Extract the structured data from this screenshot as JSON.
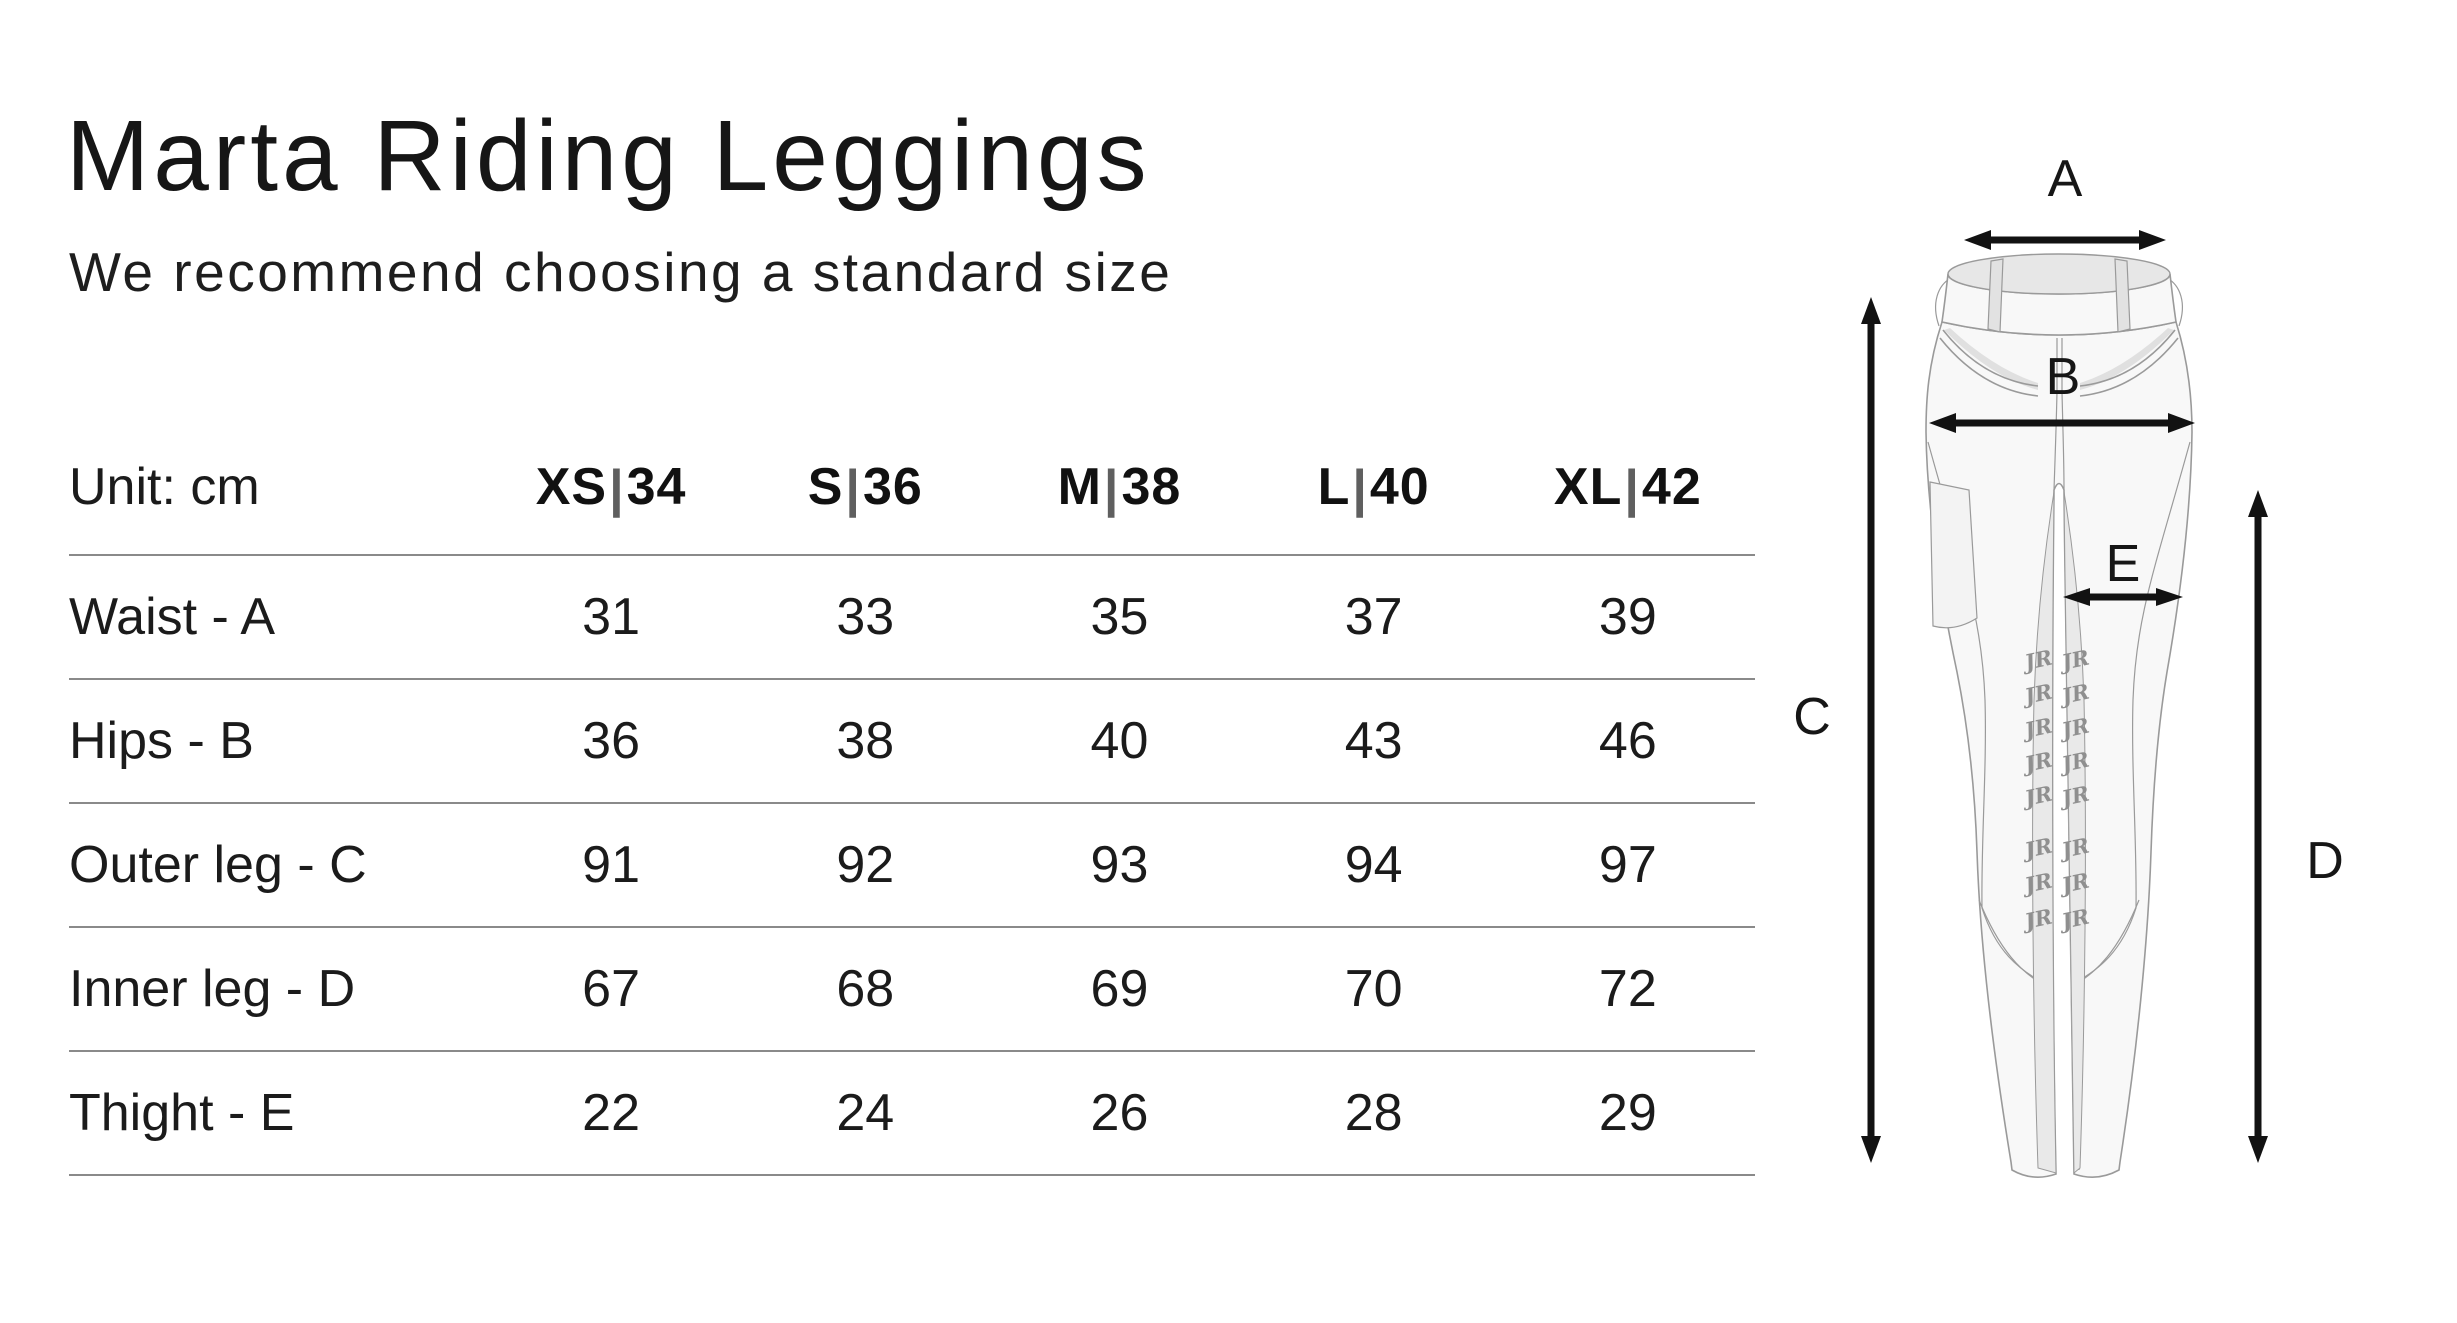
{
  "page": {
    "title": "Marta Riding Leggings",
    "subtitle": "We recommend choosing a standard size",
    "background": "#ffffff"
  },
  "chart_data": {
    "type": "table",
    "title": "Marta Riding Leggings size chart",
    "unit_label": "Unit: cm",
    "size_separator": "|",
    "columns": [
      {
        "size": "XS",
        "eu": "34"
      },
      {
        "size": "S",
        "eu": "36"
      },
      {
        "size": "M",
        "eu": "38"
      },
      {
        "size": "L",
        "eu": "40"
      },
      {
        "size": "XL",
        "eu": "42"
      }
    ],
    "rows": [
      {
        "label": "Waist - A",
        "values": [
          "31",
          "33",
          "35",
          "37",
          "39"
        ]
      },
      {
        "label": "Hips - B",
        "values": [
          "36",
          "38",
          "40",
          "43",
          "46"
        ]
      },
      {
        "label": "Outer leg - C",
        "values": [
          "91",
          "92",
          "93",
          "94",
          "97"
        ]
      },
      {
        "label": "Inner leg - D",
        "values": [
          "67",
          "68",
          "69",
          "70",
          "72"
        ]
      },
      {
        "label": "Thight - E",
        "values": [
          "22",
          "24",
          "26",
          "28",
          "29"
        ]
      }
    ]
  },
  "diagram": {
    "measure_labels": {
      "a": "A",
      "b": "B",
      "c": "C",
      "d": "D",
      "e": "E"
    },
    "logo_text": "JR"
  },
  "colors": {
    "text": "#1b1b1b",
    "table_line": "#8a8a8a",
    "separator_gray": "#5f5f5f",
    "arrow": "#121212",
    "garment_outline": "#9a9a9a",
    "garment_fill": "#f8f8f8",
    "garment_shade": "#e9e9e9"
  }
}
